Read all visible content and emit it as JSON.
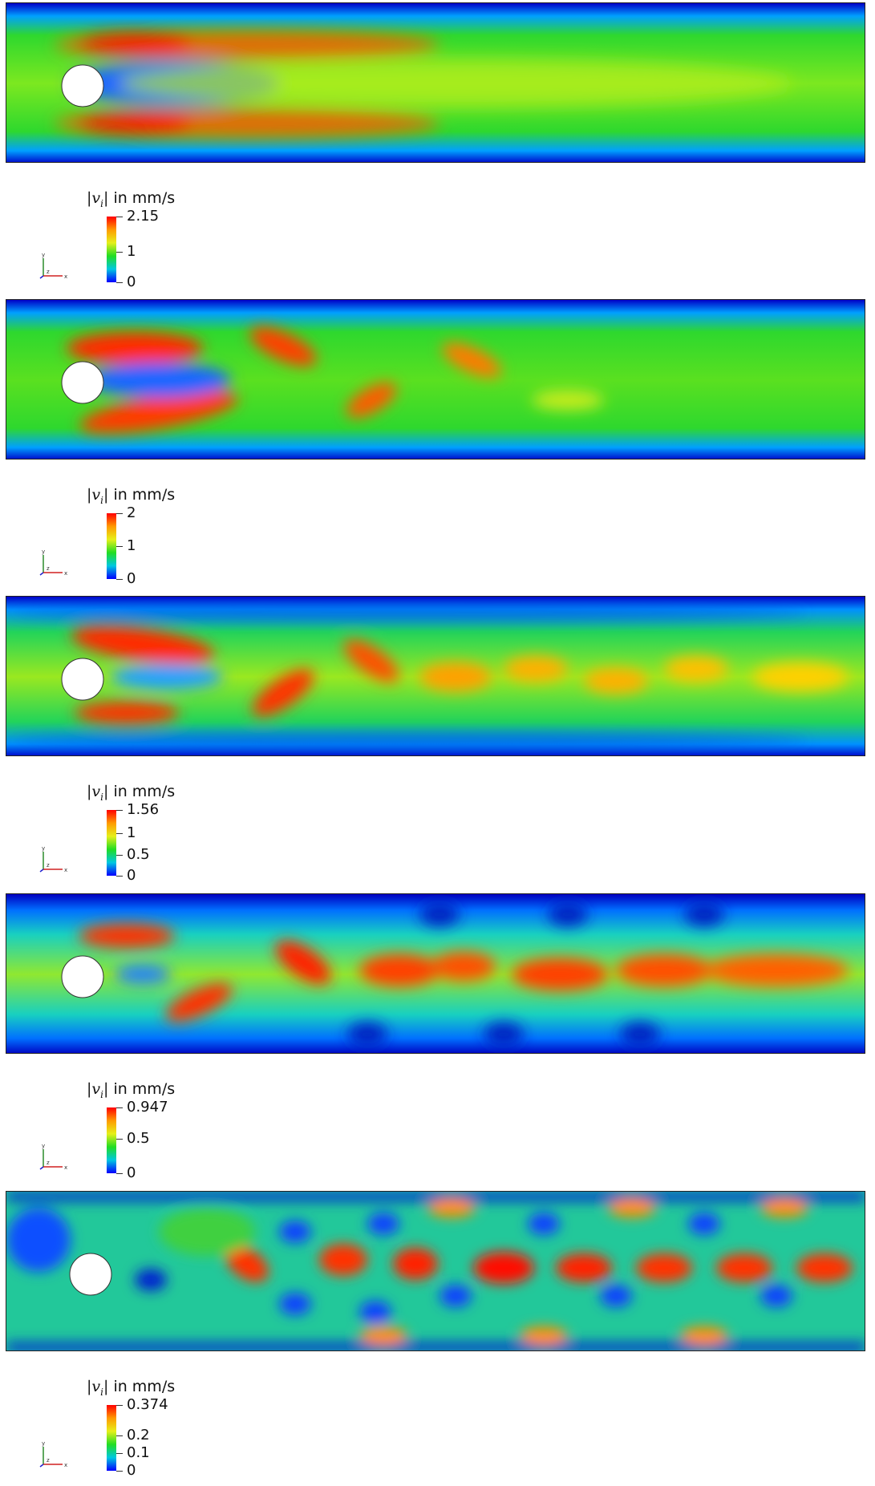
{
  "panels": [
    {
      "legend": {
        "title_symbol": "|v",
        "title_subscript": "i",
        "title_close": "|",
        "title_units": "in mm/s",
        "ticks": [
          {
            "label": "2.15",
            "value": 2.15
          },
          {
            "label": "1",
            "value": 1
          },
          {
            "label": "0",
            "value": 0
          }
        ],
        "max": 2.15
      }
    },
    {
      "legend": {
        "title_symbol": "|v",
        "title_subscript": "i",
        "title_close": "|",
        "title_units": "in mm/s",
        "ticks": [
          {
            "label": "2",
            "value": 2
          },
          {
            "label": "1",
            "value": 1
          },
          {
            "label": "0",
            "value": 0
          }
        ],
        "max": 2
      }
    },
    {
      "legend": {
        "title_symbol": "|v",
        "title_subscript": "i",
        "title_close": "|",
        "title_units": "in mm/s",
        "ticks": [
          {
            "label": "1.56",
            "value": 1.56
          },
          {
            "label": "1",
            "value": 1
          },
          {
            "label": "0.5",
            "value": 0.5
          },
          {
            "label": "0",
            "value": 0
          }
        ],
        "max": 1.56
      }
    },
    {
      "legend": {
        "title_symbol": "|v",
        "title_subscript": "i",
        "title_close": "|",
        "title_units": "in mm/s",
        "ticks": [
          {
            "label": "0.947",
            "value": 0.947
          },
          {
            "label": "0.5",
            "value": 0.5
          },
          {
            "label": "0",
            "value": 0
          }
        ],
        "max": 0.947
      }
    },
    {
      "legend": {
        "title_symbol": "|v",
        "title_subscript": "i",
        "title_close": "|",
        "title_units": "in mm/s",
        "ticks": [
          {
            "label": "0.374",
            "value": 0.374
          },
          {
            "label": "0.2",
            "value": 0.2
          },
          {
            "label": "0.1",
            "value": 0.1
          },
          {
            "label": "0",
            "value": 0
          }
        ],
        "max": 0.374
      }
    }
  ],
  "axes_labels": {
    "x": "x",
    "y": "y",
    "z": "z"
  },
  "colormap": [
    "#0000ff",
    "#00c8e0",
    "#22dd22",
    "#e6f01a",
    "#ff9a00",
    "#ff0000"
  ]
}
